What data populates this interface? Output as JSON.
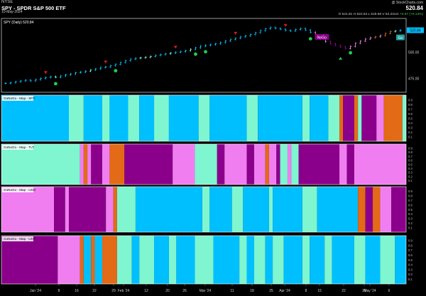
{
  "header": {
    "exchange": "NYSE",
    "date": "10-May-2024",
    "symbol_title": "SPY - SPDR S&P 500 ETF",
    "last_price": "520.84",
    "watermark": "@ StockCharts.com",
    "quote": {
      "open_label": "O",
      "open": "521.81",
      "high_label": "H",
      "high": "522.64",
      "low_label": "L",
      "low": "519.59",
      "vol_label": "V",
      "volume": "52.231m",
      "change": "+0.67 (+0.13%)"
    }
  },
  "colors": {
    "strong_up": "#00bfff",
    "weak_up": "#7ff5d0",
    "weak_down": "#f07ef0",
    "strong_down": "#8b008b",
    "neutral": "#e36a17",
    "background": "#000000"
  },
  "chart_data": [
    {
      "type": "line",
      "title": "",
      "legend": "SPY (Daily) 520.84",
      "price_labels": [
        "520.84",
        "500.00",
        "475.00"
      ],
      "badges": [
        "NoGo",
        "Go"
      ],
      "x_ticks": [
        "Jan '24",
        "8",
        "16",
        "22",
        "29",
        "Feb '24",
        "12",
        "20",
        "26",
        "Mar '24",
        "11",
        "18",
        "25",
        "Apr '24",
        "8",
        "15",
        "22",
        "29",
        "May '24",
        "6"
      ],
      "ylim": [
        462,
        532
      ],
      "series": [
        {
          "values": [
            470.5,
            471.2,
            472.0,
            472.8,
            473.5,
            472.8,
            474.0,
            475.2,
            476.0,
            476.8,
            476.2,
            477.5,
            478.6,
            479.4,
            480.6,
            481.2,
            482.0,
            483.1,
            484.2,
            485.5,
            486.0,
            487.2,
            488.5,
            490.2,
            492.0,
            493.5,
            494.3,
            494.8,
            495.2,
            496.0,
            497.0,
            497.8,
            498.5,
            499.2,
            500.0,
            500.6,
            501.5,
            502.8,
            504.2,
            505.8,
            506.5,
            507.2,
            508.0,
            509.2,
            510.6,
            512.0,
            513.2,
            514.6,
            515.5,
            516.8,
            518.5,
            520.5,
            522.2,
            523.4,
            522.6,
            521.8,
            520.6,
            520.2,
            521.5,
            522.5,
            521.0,
            518.8,
            516.0,
            512.5,
            510.0,
            508.0,
            506.5,
            505.0,
            503.5,
            505.5,
            508.5,
            510.5,
            512.5,
            513.8,
            514.6,
            515.8,
            517.8,
            519.6,
            520.2,
            520.84
          ]
        }
      ],
      "color_states": [
        "SU",
        "SU",
        "SU",
        "SU",
        "SU",
        "SU",
        "SU",
        "SU",
        "SU",
        "SU",
        "WU",
        "SU",
        "SU",
        "SU",
        "SU",
        "SU",
        "SU",
        "WU",
        "SU",
        "SU",
        "SU",
        "SU",
        "SU",
        "SU",
        "SU",
        "SU",
        "SU",
        "WU",
        "WU",
        "WU",
        "SU",
        "SU",
        "SU",
        "WU",
        "SU",
        "SU",
        "SU",
        "WU",
        "SU",
        "SU",
        "SU",
        "SU",
        "SU",
        "SU",
        "SU",
        "SU",
        "SU",
        "SU",
        "SU",
        "SU",
        "SU",
        "SU",
        "SU",
        "SU",
        "SU",
        "SU",
        "SU",
        "SU",
        "SU",
        "SU",
        "SU",
        "SU",
        "WD",
        "WD",
        "WD",
        "SD",
        "SD",
        "SD",
        "SD",
        "WD",
        "WD",
        "WD",
        "WD",
        "WD",
        "N",
        "WD",
        "N",
        "N",
        "WU",
        "SU"
      ],
      "signals": [
        {
          "bar": 8,
          "kind": "down"
        },
        {
          "bar": 10,
          "kind": "up"
        },
        {
          "bar": 20,
          "kind": "down"
        },
        {
          "bar": 22,
          "kind": "up"
        },
        {
          "bar": 34,
          "kind": "down"
        },
        {
          "bar": 38,
          "kind": "up"
        },
        {
          "bar": 40,
          "kind": "up"
        },
        {
          "bar": 46,
          "kind": "down"
        },
        {
          "bar": 56,
          "kind": "down"
        },
        {
          "bar": 61,
          "kind": "up"
        },
        {
          "bar": 69,
          "kind": "up"
        }
      ]
    },
    {
      "type": "heatmap",
      "title": "GoNoGo - Map - SPY",
      "y_ticks": [
        "0.9",
        "0.8",
        "0.7",
        "0.6",
        "0.5",
        "0.4",
        "0.3",
        "0.2",
        "0.1"
      ],
      "segments": [
        [
          "SU",
          0.0,
          0.09
        ],
        [
          "WU",
          0.09,
          0.13
        ],
        [
          "SU",
          0.13,
          0.18
        ],
        [
          "WU",
          0.18,
          0.2
        ],
        [
          "SU",
          0.2,
          0.25
        ],
        [
          "WU",
          0.25,
          0.28
        ],
        [
          "SU",
          0.28,
          0.32
        ],
        [
          "WU",
          0.32,
          0.36
        ],
        [
          "SU",
          0.36,
          0.44
        ],
        [
          "WU",
          0.44,
          0.47
        ],
        [
          "SU",
          0.47,
          0.57
        ],
        [
          "WU",
          0.57,
          0.6
        ],
        [
          "SU",
          0.6,
          0.72
        ],
        [
          "WU",
          0.72,
          0.74
        ],
        [
          "SU",
          0.74,
          0.79
        ],
        [
          "WU",
          0.79,
          0.82
        ],
        [
          "N",
          0.82,
          0.83
        ],
        [
          "SD",
          0.83,
          0.86
        ],
        [
          "N",
          0.86,
          0.87
        ],
        [
          "WU",
          0.87,
          0.88
        ],
        [
          "SD",
          0.88,
          0.92
        ],
        [
          "WD",
          0.92,
          0.94
        ],
        [
          "N",
          0.94,
          0.99
        ],
        [
          "WU",
          0.99,
          1.0
        ]
      ]
    },
    {
      "type": "heatmap",
      "title": "GoNoGo - Map - TLT",
      "y_ticks": [
        "0.9",
        "0.8",
        "0.7",
        "0.6",
        "0.5",
        "0.4",
        "0.3",
        "0.2",
        "0.1"
      ],
      "segments": [
        [
          "WU",
          0.0,
          0.12
        ],
        [
          "WD",
          0.12,
          0.13
        ],
        [
          "N",
          0.13,
          0.14
        ],
        [
          "WD",
          0.14,
          0.15
        ],
        [
          "SD",
          0.15,
          0.18
        ],
        [
          "WD",
          0.18,
          0.2
        ],
        [
          "N",
          0.2,
          0.24
        ],
        [
          "SD",
          0.24,
          0.37
        ],
        [
          "WD",
          0.37,
          0.43
        ],
        [
          "WU",
          0.43,
          0.49
        ],
        [
          "SD",
          0.49,
          0.51
        ],
        [
          "WD",
          0.51,
          0.57
        ],
        [
          "SD",
          0.57,
          0.59
        ],
        [
          "WD",
          0.59,
          0.62
        ],
        [
          "N",
          0.62,
          0.63
        ],
        [
          "WD",
          0.63,
          0.65
        ],
        [
          "SD",
          0.65,
          0.66
        ],
        [
          "WU",
          0.66,
          0.68
        ],
        [
          "WD",
          0.68,
          0.69
        ],
        [
          "WU",
          0.69,
          0.71
        ],
        [
          "SD",
          0.71,
          0.82
        ],
        [
          "WD",
          0.82,
          0.84
        ],
        [
          "SD",
          0.84,
          0.86
        ],
        [
          "WD",
          0.86,
          1.0
        ]
      ]
    },
    {
      "type": "heatmap",
      "title": "GoNoGo - Map - USO",
      "y_ticks": [
        "0.9",
        "0.8",
        "0.7",
        "0.6",
        "0.5",
        "0.4",
        "0.3",
        "0.2",
        "0.1"
      ],
      "segments": [
        [
          "WD",
          0.0,
          0.05
        ],
        [
          "SD",
          0.05,
          0.08
        ],
        [
          "WD",
          0.08,
          0.09
        ],
        [
          "SD",
          0.09,
          0.19
        ],
        [
          "WD",
          0.19,
          0.21
        ],
        [
          "N",
          0.21,
          0.22
        ],
        [
          "WU",
          0.22,
          0.27
        ],
        [
          "SU",
          0.27,
          0.45
        ],
        [
          "WU",
          0.45,
          0.47
        ],
        [
          "SU",
          0.47,
          0.53
        ],
        [
          "WU",
          0.53,
          0.56
        ],
        [
          "SU",
          0.56,
          0.63
        ],
        [
          "WU",
          0.63,
          0.64
        ],
        [
          "SU",
          0.64,
          0.72
        ],
        [
          "WU",
          0.72,
          0.76
        ],
        [
          "SU",
          0.76,
          0.87
        ],
        [
          "N",
          0.87,
          0.89
        ],
        [
          "SD",
          0.89,
          0.91
        ],
        [
          "N",
          0.91,
          0.93
        ],
        [
          "WD",
          0.93,
          0.96
        ],
        [
          "SD",
          0.96,
          1.0
        ]
      ]
    },
    {
      "type": "heatmap",
      "title": "GoNoGo - Map - USF",
      "y_ticks": [
        "0.9",
        "0.8",
        "0.7",
        "0.6",
        "0.5",
        "0.4",
        "0.3",
        "0.2",
        "0.1"
      ],
      "segments": [
        [
          "SD",
          0.0,
          0.06
        ],
        [
          "WD",
          0.06,
          0.12
        ],
        [
          "N",
          0.12,
          0.13
        ],
        [
          "SU",
          0.13,
          0.15
        ],
        [
          "N",
          0.15,
          0.16
        ],
        [
          "SU",
          0.16,
          0.18
        ],
        [
          "N",
          0.18,
          0.22
        ],
        [
          "WU",
          0.22,
          0.26
        ],
        [
          "SU",
          0.26,
          0.28
        ],
        [
          "WU",
          0.28,
          0.32
        ],
        [
          "SU",
          0.32,
          0.36
        ],
        [
          "WU",
          0.36,
          0.38
        ],
        [
          "SU",
          0.38,
          0.43
        ],
        [
          "WU",
          0.43,
          0.48
        ],
        [
          "SU",
          0.48,
          0.55
        ],
        [
          "WU",
          0.55,
          0.57
        ],
        [
          "SU",
          0.57,
          0.59
        ],
        [
          "WU",
          0.59,
          0.62
        ],
        [
          "SU",
          0.62,
          0.64
        ],
        [
          "WU",
          0.64,
          0.67
        ],
        [
          "SU",
          0.67,
          0.72
        ],
        [
          "WU",
          0.72,
          0.74
        ],
        [
          "SU",
          0.74,
          0.78
        ],
        [
          "WU",
          0.78,
          0.8
        ],
        [
          "SU",
          0.8,
          0.86
        ],
        [
          "WU",
          0.86,
          0.89
        ],
        [
          "SU",
          0.89,
          0.93
        ],
        [
          "WU",
          0.93,
          0.97
        ],
        [
          "SU",
          0.97,
          1.0
        ]
      ]
    }
  ]
}
